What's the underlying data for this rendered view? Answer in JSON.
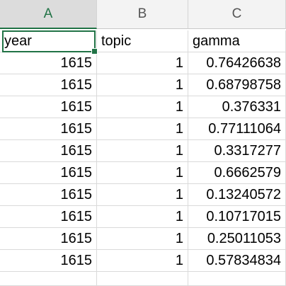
{
  "columns": [
    {
      "letter": "A",
      "selected": true
    },
    {
      "letter": "B",
      "selected": false
    },
    {
      "letter": "C",
      "selected": false
    }
  ],
  "header_row": {
    "year": "year",
    "topic": "topic",
    "gamma": "gamma"
  },
  "rows": [
    {
      "year": "1615",
      "topic": "1",
      "gamma": "0.76426638"
    },
    {
      "year": "1615",
      "topic": "1",
      "gamma": "0.68798758"
    },
    {
      "year": "1615",
      "topic": "1",
      "gamma": "0.376331"
    },
    {
      "year": "1615",
      "topic": "1",
      "gamma": "0.77111064"
    },
    {
      "year": "1615",
      "topic": "1",
      "gamma": "0.3317277"
    },
    {
      "year": "1615",
      "topic": "1",
      "gamma": "0.6662579"
    },
    {
      "year": "1615",
      "topic": "1",
      "gamma": "0.13240572"
    },
    {
      "year": "1615",
      "topic": "1",
      "gamma": "0.10717015"
    },
    {
      "year": "1615",
      "topic": "1",
      "gamma": "0.25011053"
    },
    {
      "year": "1615",
      "topic": "1",
      "gamma": "0.57834834"
    }
  ],
  "colors": {
    "accent": "#217346",
    "header_bg": "#f3f3f3",
    "selected_header_bg": "#dcdcdc",
    "gridline": "#dadada"
  }
}
